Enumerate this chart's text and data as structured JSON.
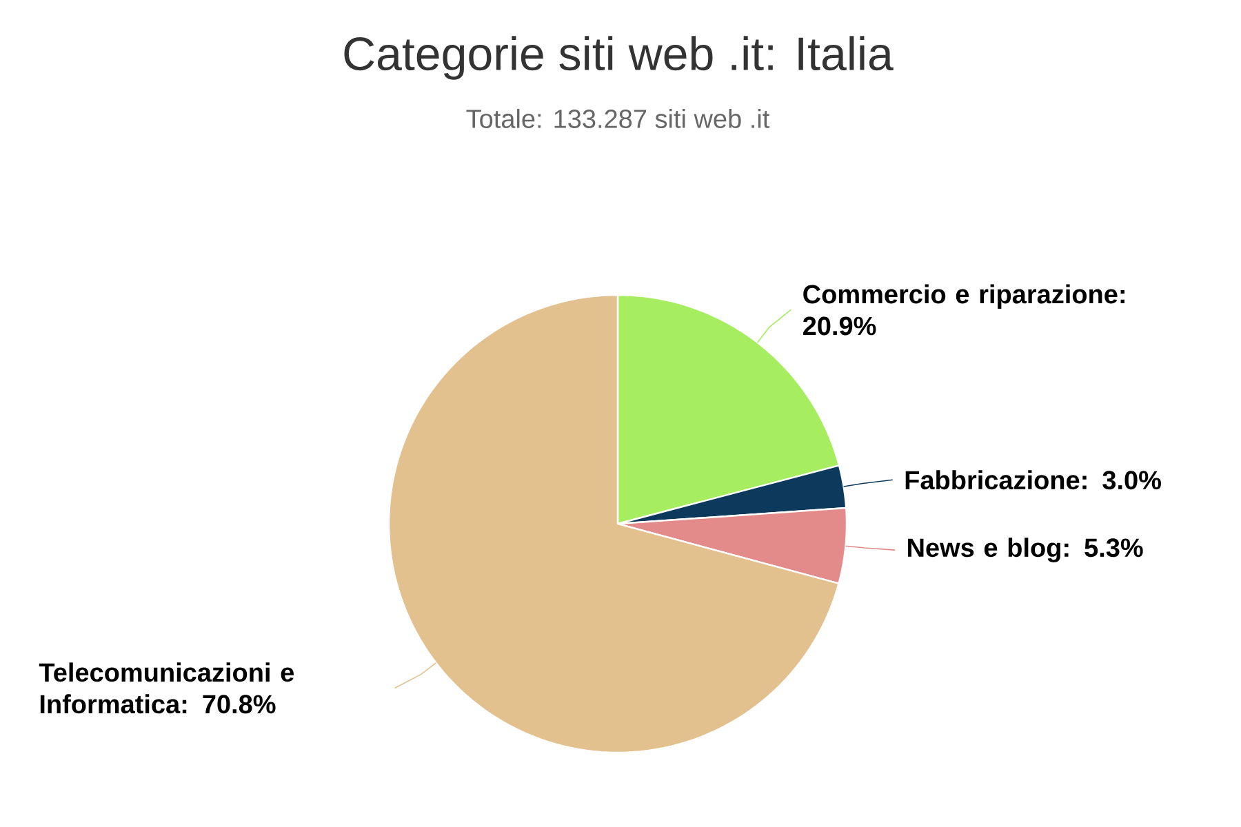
{
  "chart_data": {
    "type": "pie",
    "title": "Categorie siti web .it: Italia",
    "subtitle": "Totale: 133.287 siti web .it",
    "categories": [
      "Commercio e riparazione",
      "Fabbricazione",
      "News e blog",
      "Telecomunicazioni e Informatica"
    ],
    "values": [
      20.9,
      3.0,
      5.3,
      70.8
    ],
    "value_labels": [
      ": 20.9%",
      ": 3.0%",
      ": 5.3%",
      ": 70.8%"
    ],
    "colors": [
      "#a6ee60",
      "#0d3a5c",
      "#e38a8a",
      "#e3c18f"
    ]
  }
}
